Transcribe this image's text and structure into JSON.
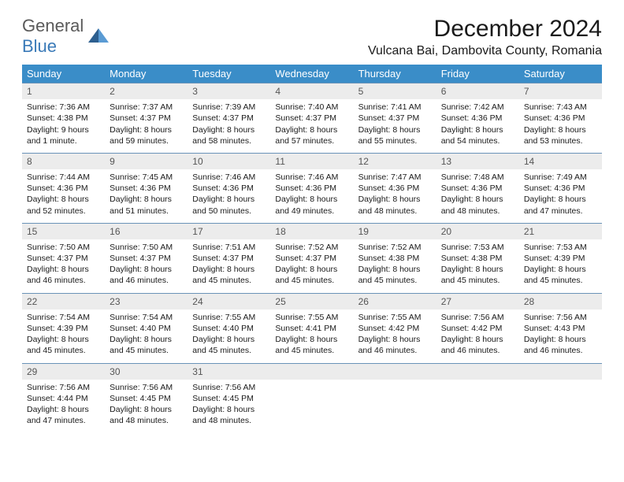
{
  "logo": {
    "text_general": "General",
    "text_blue": "Blue"
  },
  "title": "December 2024",
  "location": "Vulcana Bai, Dambovita County, Romania",
  "colors": {
    "header_bg": "#3a8dc8",
    "header_fg": "#ffffff",
    "daynum_bg": "#ececec",
    "daynum_border": "#6a93b8",
    "text": "#1a1a1a",
    "logo_gray": "#5a5a5a",
    "logo_blue": "#3a7ab8"
  },
  "weekdays": [
    "Sunday",
    "Monday",
    "Tuesday",
    "Wednesday",
    "Thursday",
    "Friday",
    "Saturday"
  ],
  "weeks": [
    {
      "nums": [
        "1",
        "2",
        "3",
        "4",
        "5",
        "6",
        "7"
      ],
      "cells": [
        {
          "sunrise": "Sunrise: 7:36 AM",
          "sunset": "Sunset: 4:38 PM",
          "daylight": "Daylight: 9 hours and 1 minute."
        },
        {
          "sunrise": "Sunrise: 7:37 AM",
          "sunset": "Sunset: 4:37 PM",
          "daylight": "Daylight: 8 hours and 59 minutes."
        },
        {
          "sunrise": "Sunrise: 7:39 AM",
          "sunset": "Sunset: 4:37 PM",
          "daylight": "Daylight: 8 hours and 58 minutes."
        },
        {
          "sunrise": "Sunrise: 7:40 AM",
          "sunset": "Sunset: 4:37 PM",
          "daylight": "Daylight: 8 hours and 57 minutes."
        },
        {
          "sunrise": "Sunrise: 7:41 AM",
          "sunset": "Sunset: 4:37 PM",
          "daylight": "Daylight: 8 hours and 55 minutes."
        },
        {
          "sunrise": "Sunrise: 7:42 AM",
          "sunset": "Sunset: 4:36 PM",
          "daylight": "Daylight: 8 hours and 54 minutes."
        },
        {
          "sunrise": "Sunrise: 7:43 AM",
          "sunset": "Sunset: 4:36 PM",
          "daylight": "Daylight: 8 hours and 53 minutes."
        }
      ]
    },
    {
      "nums": [
        "8",
        "9",
        "10",
        "11",
        "12",
        "13",
        "14"
      ],
      "cells": [
        {
          "sunrise": "Sunrise: 7:44 AM",
          "sunset": "Sunset: 4:36 PM",
          "daylight": "Daylight: 8 hours and 52 minutes."
        },
        {
          "sunrise": "Sunrise: 7:45 AM",
          "sunset": "Sunset: 4:36 PM",
          "daylight": "Daylight: 8 hours and 51 minutes."
        },
        {
          "sunrise": "Sunrise: 7:46 AM",
          "sunset": "Sunset: 4:36 PM",
          "daylight": "Daylight: 8 hours and 50 minutes."
        },
        {
          "sunrise": "Sunrise: 7:46 AM",
          "sunset": "Sunset: 4:36 PM",
          "daylight": "Daylight: 8 hours and 49 minutes."
        },
        {
          "sunrise": "Sunrise: 7:47 AM",
          "sunset": "Sunset: 4:36 PM",
          "daylight": "Daylight: 8 hours and 48 minutes."
        },
        {
          "sunrise": "Sunrise: 7:48 AM",
          "sunset": "Sunset: 4:36 PM",
          "daylight": "Daylight: 8 hours and 48 minutes."
        },
        {
          "sunrise": "Sunrise: 7:49 AM",
          "sunset": "Sunset: 4:36 PM",
          "daylight": "Daylight: 8 hours and 47 minutes."
        }
      ]
    },
    {
      "nums": [
        "15",
        "16",
        "17",
        "18",
        "19",
        "20",
        "21"
      ],
      "cells": [
        {
          "sunrise": "Sunrise: 7:50 AM",
          "sunset": "Sunset: 4:37 PM",
          "daylight": "Daylight: 8 hours and 46 minutes."
        },
        {
          "sunrise": "Sunrise: 7:50 AM",
          "sunset": "Sunset: 4:37 PM",
          "daylight": "Daylight: 8 hours and 46 minutes."
        },
        {
          "sunrise": "Sunrise: 7:51 AM",
          "sunset": "Sunset: 4:37 PM",
          "daylight": "Daylight: 8 hours and 45 minutes."
        },
        {
          "sunrise": "Sunrise: 7:52 AM",
          "sunset": "Sunset: 4:37 PM",
          "daylight": "Daylight: 8 hours and 45 minutes."
        },
        {
          "sunrise": "Sunrise: 7:52 AM",
          "sunset": "Sunset: 4:38 PM",
          "daylight": "Daylight: 8 hours and 45 minutes."
        },
        {
          "sunrise": "Sunrise: 7:53 AM",
          "sunset": "Sunset: 4:38 PM",
          "daylight": "Daylight: 8 hours and 45 minutes."
        },
        {
          "sunrise": "Sunrise: 7:53 AM",
          "sunset": "Sunset: 4:39 PM",
          "daylight": "Daylight: 8 hours and 45 minutes."
        }
      ]
    },
    {
      "nums": [
        "22",
        "23",
        "24",
        "25",
        "26",
        "27",
        "28"
      ],
      "cells": [
        {
          "sunrise": "Sunrise: 7:54 AM",
          "sunset": "Sunset: 4:39 PM",
          "daylight": "Daylight: 8 hours and 45 minutes."
        },
        {
          "sunrise": "Sunrise: 7:54 AM",
          "sunset": "Sunset: 4:40 PM",
          "daylight": "Daylight: 8 hours and 45 minutes."
        },
        {
          "sunrise": "Sunrise: 7:55 AM",
          "sunset": "Sunset: 4:40 PM",
          "daylight": "Daylight: 8 hours and 45 minutes."
        },
        {
          "sunrise": "Sunrise: 7:55 AM",
          "sunset": "Sunset: 4:41 PM",
          "daylight": "Daylight: 8 hours and 45 minutes."
        },
        {
          "sunrise": "Sunrise: 7:55 AM",
          "sunset": "Sunset: 4:42 PM",
          "daylight": "Daylight: 8 hours and 46 minutes."
        },
        {
          "sunrise": "Sunrise: 7:56 AM",
          "sunset": "Sunset: 4:42 PM",
          "daylight": "Daylight: 8 hours and 46 minutes."
        },
        {
          "sunrise": "Sunrise: 7:56 AM",
          "sunset": "Sunset: 4:43 PM",
          "daylight": "Daylight: 8 hours and 46 minutes."
        }
      ]
    },
    {
      "nums": [
        "29",
        "30",
        "31",
        "",
        "",
        "",
        ""
      ],
      "cells": [
        {
          "sunrise": "Sunrise: 7:56 AM",
          "sunset": "Sunset: 4:44 PM",
          "daylight": "Daylight: 8 hours and 47 minutes."
        },
        {
          "sunrise": "Sunrise: 7:56 AM",
          "sunset": "Sunset: 4:45 PM",
          "daylight": "Daylight: 8 hours and 48 minutes."
        },
        {
          "sunrise": "Sunrise: 7:56 AM",
          "sunset": "Sunset: 4:45 PM",
          "daylight": "Daylight: 8 hours and 48 minutes."
        },
        {
          "empty": true
        },
        {
          "empty": true
        },
        {
          "empty": true
        },
        {
          "empty": true
        }
      ]
    }
  ]
}
